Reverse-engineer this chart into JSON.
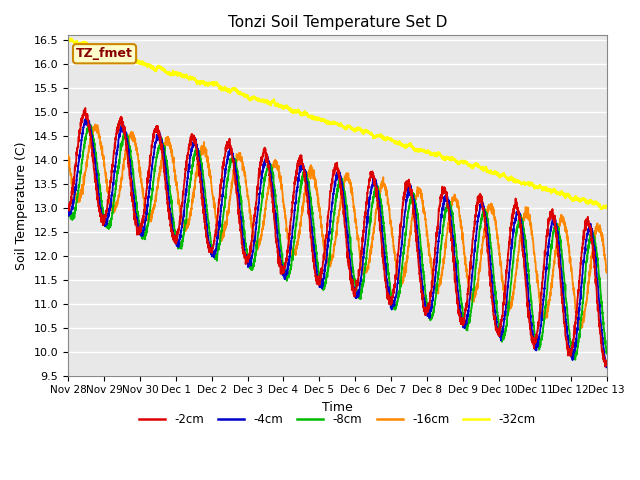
{
  "title": "Tonzi Soil Temperature Set D",
  "xlabel": "Time",
  "ylabel": "Soil Temperature (C)",
  "ylim": [
    9.5,
    16.6
  ],
  "xlim_start": 0,
  "xlim_end": 15.0,
  "plot_bg": "#e8e8e8",
  "grid_color": "white",
  "annotation_text": "TZ_fmet",
  "annotation_bg": "#ffffcc",
  "annotation_border": "#cc8800",
  "annotation_text_color": "#880000",
  "legend_entries": [
    "-2cm",
    "-4cm",
    "-8cm",
    "-16cm",
    "-32cm"
  ],
  "line_colors": [
    "#dd0000",
    "#0000cc",
    "#00bb00",
    "#ff8800",
    "#ffff00"
  ],
  "line_widths": [
    1.3,
    1.3,
    1.3,
    1.3,
    1.5
  ],
  "tick_labels": [
    "Nov 28",
    "Nov 29",
    "Nov 30",
    "Dec 1",
    "Dec 2",
    "Dec 3",
    "Dec 4",
    "Dec 5",
    "Dec 6",
    "Dec 7",
    "Dec 8",
    "Dec 9",
    "Dec 10",
    "Dec 11",
    "Dec 12",
    "Dec 13"
  ],
  "tick_positions": [
    0,
    1,
    2,
    3,
    4,
    5,
    6,
    7,
    8,
    9,
    10,
    11,
    12,
    13,
    14,
    15
  ],
  "yticks": [
    9.5,
    10.0,
    10.5,
    11.0,
    11.5,
    12.0,
    12.5,
    13.0,
    13.5,
    14.0,
    14.5,
    15.0,
    15.5,
    16.0,
    16.5
  ],
  "num_points": 3000
}
